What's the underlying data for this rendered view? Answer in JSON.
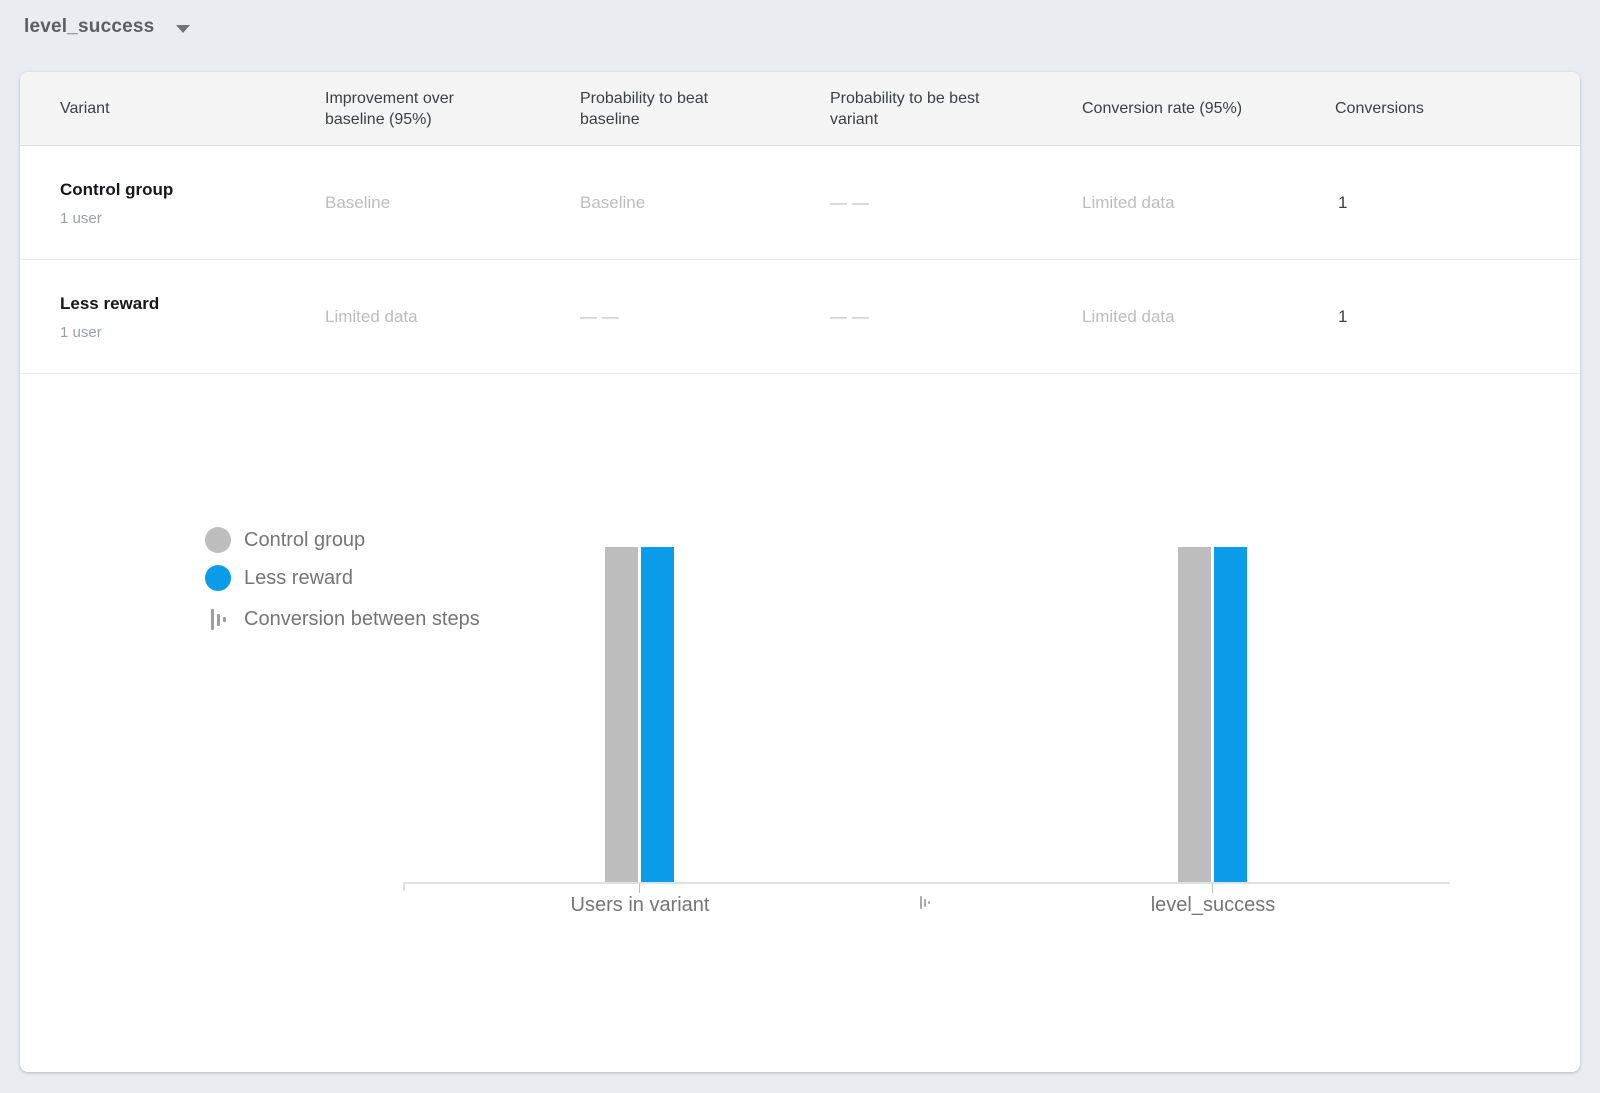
{
  "metric_selector": {
    "label": "level_success"
  },
  "table": {
    "columns": [
      "Variant",
      "Improvement over baseline (95%)",
      "Probability to beat baseline",
      "Probability to be best variant",
      "Conversion rate (95%)",
      "Conversions"
    ],
    "rows": [
      {
        "variant": "Control group",
        "users": "1 user",
        "improvement_over_baseline": "Baseline",
        "probability_to_beat_baseline": "Baseline",
        "probability_to_be_best": "— —",
        "conversion_rate": "Limited data",
        "conversions": "1"
      },
      {
        "variant": "Less reward",
        "users": "1 user",
        "improvement_over_baseline": "Limited data",
        "probability_to_beat_baseline": "— —",
        "probability_to_be_best": "— —",
        "conversion_rate": "Limited data",
        "conversions": "1"
      }
    ]
  },
  "chart": {
    "legend": [
      {
        "label": "Control group"
      },
      {
        "label": "Less reward"
      },
      {
        "label": "Conversion between steps"
      }
    ]
  },
  "chart_data": {
    "type": "bar",
    "categories": [
      "Users in variant",
      "level_success"
    ],
    "series": [
      {
        "name": "Control group",
        "values": [
          1,
          1
        ],
        "color": "#bdbdbd"
      },
      {
        "name": "Less reward",
        "values": [
          1,
          1
        ],
        "color": "#0a9ce8"
      }
    ],
    "ylim": [
      0,
      1
    ],
    "grid": false,
    "legend_position": "left",
    "axis_color": "#e0e0e0"
  },
  "colors": {
    "page_background": "#e9edf1",
    "card_background": "#ffffff",
    "muted_text": "#bdbdbd",
    "accent_blue": "#0a9ce8",
    "control_gray": "#bdbdbd"
  }
}
